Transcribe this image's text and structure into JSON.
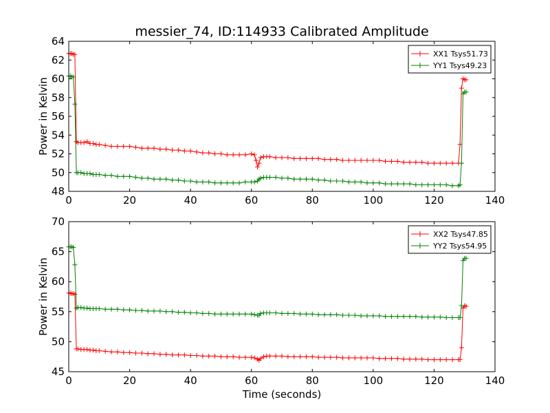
{
  "figure": {
    "title": "messier_74, ID:114933 Calibrated Amplitude",
    "xlabel": "Time (seconds)"
  },
  "chart_data": [
    {
      "type": "line",
      "ylabel": "Power in Kelvin",
      "xlim": [
        0,
        140
      ],
      "ylim": [
        48,
        64
      ],
      "xticks": [
        0,
        20,
        40,
        60,
        80,
        100,
        120,
        140
      ],
      "yticks": [
        48,
        50,
        52,
        54,
        56,
        58,
        60,
        62,
        64
      ],
      "grid": false,
      "legend_position": "top-right",
      "series": [
        {
          "name": "XX1 Tsys51.73",
          "color": "#ff0000",
          "x": [
            0,
            0.5,
            1,
            1.5,
            2,
            2.5,
            3,
            4,
            5,
            6,
            7,
            8,
            9,
            10,
            12,
            14,
            16,
            18,
            20,
            22,
            24,
            26,
            28,
            30,
            32,
            34,
            36,
            38,
            40,
            42,
            44,
            46,
            48,
            50,
            52,
            54,
            56,
            58,
            60,
            61,
            61.5,
            62,
            62.5,
            63,
            64,
            65,
            66,
            68,
            70,
            72,
            74,
            76,
            78,
            80,
            82,
            84,
            86,
            88,
            90,
            92,
            94,
            96,
            98,
            100,
            102,
            104,
            106,
            108,
            110,
            112,
            114,
            116,
            118,
            120,
            122,
            124,
            126,
            128,
            128.5,
            129,
            129.5,
            130,
            130.5
          ],
          "y": [
            62.7,
            62.7,
            62.7,
            62.6,
            62.6,
            53.3,
            53.2,
            53.2,
            53.2,
            53.3,
            53.1,
            53.1,
            53.0,
            53.0,
            52.9,
            52.8,
            52.8,
            52.8,
            52.8,
            52.7,
            52.6,
            52.6,
            52.6,
            52.5,
            52.5,
            52.4,
            52.4,
            52.3,
            52.3,
            52.2,
            52.1,
            52.1,
            52.0,
            52.0,
            51.9,
            51.9,
            51.9,
            51.9,
            52.0,
            51.9,
            51.3,
            50.6,
            51.0,
            51.6,
            51.7,
            51.7,
            51.7,
            51.6,
            51.6,
            51.6,
            51.5,
            51.5,
            51.5,
            51.5,
            51.5,
            51.4,
            51.4,
            51.4,
            51.3,
            51.3,
            51.3,
            51.3,
            51.3,
            51.3,
            51.3,
            51.2,
            51.2,
            51.2,
            51.1,
            51.1,
            51.1,
            51.1,
            51.0,
            51.0,
            51.0,
            51.0,
            51.0,
            51.0,
            53.0,
            59.0,
            60.0,
            59.9,
            59.9
          ]
        },
        {
          "name": "YY1 Tsys49.23",
          "color": "#008000",
          "x": [
            0,
            0.5,
            1,
            1.5,
            2,
            2.5,
            3,
            4,
            5,
            6,
            7,
            8,
            9,
            10,
            12,
            14,
            16,
            18,
            20,
            22,
            24,
            26,
            28,
            30,
            32,
            34,
            36,
            38,
            40,
            42,
            44,
            46,
            48,
            50,
            52,
            54,
            56,
            58,
            60,
            61,
            62,
            62.5,
            63,
            64,
            65,
            66,
            68,
            70,
            72,
            74,
            76,
            78,
            80,
            82,
            84,
            86,
            88,
            90,
            92,
            94,
            96,
            98,
            100,
            102,
            104,
            106,
            108,
            110,
            112,
            114,
            116,
            118,
            120,
            122,
            124,
            126,
            128,
            128.5,
            129,
            129.5,
            130,
            130.5
          ],
          "y": [
            60.3,
            60.3,
            60.2,
            60.2,
            57.3,
            50.0,
            50.0,
            50.0,
            49.9,
            49.9,
            49.9,
            49.8,
            49.8,
            49.8,
            49.7,
            49.7,
            49.6,
            49.6,
            49.6,
            49.5,
            49.4,
            49.4,
            49.3,
            49.3,
            49.3,
            49.2,
            49.2,
            49.1,
            49.1,
            49.0,
            49.0,
            49.0,
            48.9,
            48.9,
            48.9,
            48.9,
            48.9,
            49.0,
            49.0,
            49.0,
            49.1,
            49.3,
            49.4,
            49.5,
            49.5,
            49.5,
            49.5,
            49.4,
            49.4,
            49.3,
            49.3,
            49.3,
            49.3,
            49.2,
            49.2,
            49.1,
            49.1,
            49.1,
            49.0,
            49.0,
            49.0,
            48.9,
            48.9,
            48.9,
            48.8,
            48.8,
            48.8,
            48.8,
            48.8,
            48.7,
            48.7,
            48.7,
            48.7,
            48.7,
            48.7,
            48.6,
            48.6,
            48.7,
            51.0,
            58.4,
            58.6,
            58.6
          ]
        }
      ]
    },
    {
      "type": "line",
      "ylabel": "Power in Kelvin",
      "xlim": [
        0,
        140
      ],
      "ylim": [
        45,
        70
      ],
      "xticks": [
        0,
        20,
        40,
        60,
        80,
        100,
        120,
        140
      ],
      "yticks": [
        45,
        50,
        55,
        60,
        65,
        70
      ],
      "grid": false,
      "legend_position": "top-right",
      "series": [
        {
          "name": "XX2 Tsys47.85",
          "color": "#ff0000",
          "x": [
            0,
            0.5,
            1,
            1.5,
            2,
            2.5,
            3,
            4,
            5,
            6,
            7,
            8,
            9,
            10,
            12,
            14,
            16,
            18,
            20,
            22,
            24,
            26,
            28,
            30,
            32,
            34,
            36,
            38,
            40,
            42,
            44,
            46,
            48,
            50,
            52,
            54,
            56,
            58,
            60,
            61,
            62,
            62.5,
            63,
            64,
            65,
            66,
            68,
            70,
            72,
            74,
            76,
            78,
            80,
            82,
            84,
            86,
            88,
            90,
            92,
            94,
            96,
            98,
            100,
            102,
            104,
            106,
            108,
            110,
            112,
            114,
            116,
            118,
            120,
            122,
            124,
            126,
            128,
            128.5,
            129,
            129.5,
            130,
            130.5
          ],
          "y": [
            58.1,
            58.1,
            58.0,
            58.0,
            57.9,
            48.8,
            48.8,
            48.7,
            48.7,
            48.7,
            48.6,
            48.6,
            48.5,
            48.5,
            48.4,
            48.3,
            48.3,
            48.2,
            48.2,
            48.1,
            48.1,
            48.0,
            48.0,
            47.9,
            47.9,
            47.8,
            47.8,
            47.8,
            47.7,
            47.7,
            47.6,
            47.6,
            47.6,
            47.5,
            47.5,
            47.5,
            47.4,
            47.4,
            47.4,
            47.3,
            47.1,
            46.9,
            47.2,
            47.5,
            47.6,
            47.6,
            47.6,
            47.6,
            47.5,
            47.5,
            47.5,
            47.5,
            47.5,
            47.4,
            47.4,
            47.4,
            47.4,
            47.3,
            47.3,
            47.3,
            47.3,
            47.3,
            47.3,
            47.2,
            47.2,
            47.2,
            47.2,
            47.1,
            47.1,
            47.1,
            47.1,
            47.0,
            47.0,
            47.0,
            47.0,
            47.0,
            47.0,
            47.0,
            49.0,
            55.6,
            56.0,
            55.9
          ]
        },
        {
          "name": "YY2 Tsys54.95",
          "color": "#008000",
          "x": [
            0,
            0.5,
            1,
            1.5,
            2,
            2.5,
            3,
            4,
            5,
            6,
            7,
            8,
            9,
            10,
            12,
            14,
            16,
            18,
            20,
            22,
            24,
            26,
            28,
            30,
            32,
            34,
            36,
            38,
            40,
            42,
            44,
            46,
            48,
            50,
            52,
            54,
            56,
            58,
            60,
            61,
            62,
            62.5,
            63,
            64,
            65,
            66,
            68,
            70,
            72,
            74,
            76,
            78,
            80,
            82,
            84,
            86,
            88,
            90,
            92,
            94,
            96,
            98,
            100,
            102,
            104,
            106,
            108,
            110,
            112,
            114,
            116,
            118,
            120,
            122,
            124,
            126,
            128,
            128.5,
            129,
            129.5,
            130,
            130.5
          ],
          "y": [
            65.8,
            65.8,
            65.8,
            65.7,
            62.8,
            55.6,
            55.7,
            55.7,
            55.6,
            55.6,
            55.5,
            55.5,
            55.5,
            55.5,
            55.4,
            55.4,
            55.4,
            55.3,
            55.3,
            55.2,
            55.2,
            55.1,
            55.1,
            55.1,
            55.0,
            55.0,
            54.9,
            54.9,
            54.8,
            54.8,
            54.7,
            54.7,
            54.6,
            54.6,
            54.6,
            54.6,
            54.6,
            54.6,
            54.6,
            54.5,
            54.4,
            54.4,
            54.7,
            54.8,
            54.8,
            54.8,
            54.8,
            54.7,
            54.7,
            54.7,
            54.6,
            54.6,
            54.6,
            54.5,
            54.5,
            54.5,
            54.5,
            54.4,
            54.4,
            54.4,
            54.3,
            54.3,
            54.3,
            54.3,
            54.2,
            54.2,
            54.2,
            54.2,
            54.2,
            54.2,
            54.1,
            54.1,
            54.1,
            54.1,
            54.0,
            54.0,
            54.0,
            54.0,
            56.0,
            63.5,
            63.9,
            63.9
          ]
        }
      ]
    }
  ]
}
